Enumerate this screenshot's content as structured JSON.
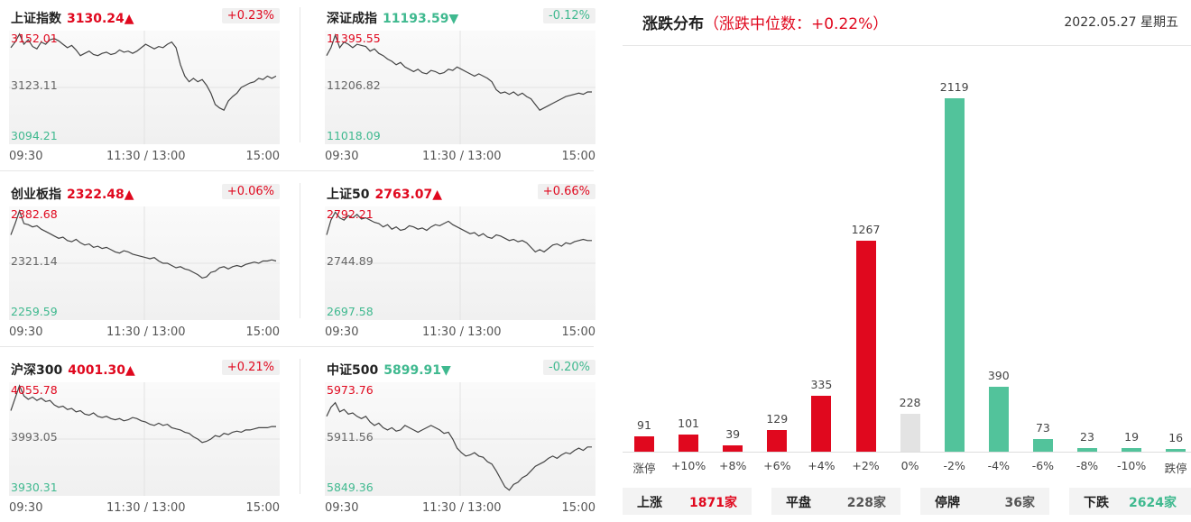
{
  "indices": [
    {
      "name": "上证指数",
      "price": "3130.24",
      "arrow": "▲",
      "dir": "up",
      "change": "+0.23%",
      "y_high": "3152.01",
      "y_mid": "3123.11",
      "y_low": "3094.21",
      "x_start": "09:30",
      "x_mid": "11:30 / 13:00",
      "x_end": "15:00",
      "series": [
        0.85,
        0.9,
        0.97,
        0.88,
        0.92,
        0.86,
        0.84,
        0.9,
        0.88,
        0.92,
        0.93,
        0.91,
        0.88,
        0.85,
        0.87,
        0.83,
        0.78,
        0.8,
        0.82,
        0.79,
        0.78,
        0.8,
        0.81,
        0.79,
        0.8,
        0.83,
        0.81,
        0.82,
        0.8,
        0.82,
        0.85,
        0.88,
        0.86,
        0.84,
        0.86,
        0.85,
        0.88,
        0.9,
        0.85,
        0.7,
        0.6,
        0.55,
        0.58,
        0.55,
        0.57,
        0.52,
        0.45,
        0.35,
        0.32,
        0.3,
        0.38,
        0.42,
        0.45,
        0.5,
        0.52,
        0.54,
        0.55,
        0.58,
        0.57,
        0.6,
        0.58,
        0.6
      ]
    },
    {
      "name": "深证成指",
      "price": "11193.59",
      "arrow": "▼",
      "dir": "down",
      "change": "-0.12%",
      "y_high": "11395.55",
      "y_mid": "11206.82",
      "y_low": "11018.09",
      "x_start": "09:30",
      "x_mid": "11:30 / 13:00",
      "x_end": "15:00",
      "series": [
        0.78,
        0.85,
        0.96,
        0.85,
        0.9,
        0.88,
        0.85,
        0.88,
        0.87,
        0.86,
        0.82,
        0.84,
        0.8,
        0.78,
        0.75,
        0.73,
        0.7,
        0.72,
        0.68,
        0.66,
        0.64,
        0.66,
        0.63,
        0.62,
        0.65,
        0.64,
        0.62,
        0.63,
        0.66,
        0.65,
        0.68,
        0.66,
        0.64,
        0.62,
        0.6,
        0.62,
        0.6,
        0.58,
        0.55,
        0.48,
        0.45,
        0.46,
        0.44,
        0.46,
        0.43,
        0.45,
        0.42,
        0.4,
        0.35,
        0.3,
        0.32,
        0.34,
        0.36,
        0.38,
        0.4,
        0.42,
        0.43,
        0.44,
        0.45,
        0.44,
        0.46,
        0.46
      ]
    },
    {
      "name": "创业板指",
      "price": "2322.48",
      "arrow": "▲",
      "dir": "up",
      "change": "+0.06%",
      "y_high": "2382.68",
      "y_mid": "2321.14",
      "y_low": "2259.59",
      "x_start": "09:30",
      "x_mid": "11:30 / 13:00",
      "x_end": "15:00",
      "series": [
        0.75,
        0.85,
        0.96,
        0.85,
        0.84,
        0.82,
        0.83,
        0.8,
        0.78,
        0.76,
        0.74,
        0.72,
        0.73,
        0.7,
        0.69,
        0.71,
        0.68,
        0.66,
        0.67,
        0.64,
        0.65,
        0.63,
        0.64,
        0.62,
        0.6,
        0.59,
        0.61,
        0.6,
        0.58,
        0.57,
        0.56,
        0.55,
        0.54,
        0.55,
        0.52,
        0.5,
        0.5,
        0.48,
        0.46,
        0.47,
        0.45,
        0.44,
        0.42,
        0.4,
        0.37,
        0.38,
        0.42,
        0.43,
        0.46,
        0.47,
        0.45,
        0.47,
        0.48,
        0.47,
        0.49,
        0.5,
        0.51,
        0.5,
        0.52,
        0.52,
        0.53,
        0.52
      ]
    },
    {
      "name": "上证50",
      "price": "2763.07",
      "arrow": "▲",
      "dir": "up",
      "change": "+0.66%",
      "y_high": "2792.21",
      "y_mid": "2744.89",
      "y_low": "2697.58",
      "x_start": "09:30",
      "x_mid": "11:30 / 13:00",
      "x_end": "15:00",
      "series": [
        0.75,
        0.88,
        0.95,
        0.9,
        0.88,
        0.92,
        0.9,
        0.93,
        0.89,
        0.9,
        0.88,
        0.86,
        0.85,
        0.82,
        0.84,
        0.8,
        0.82,
        0.79,
        0.8,
        0.83,
        0.82,
        0.8,
        0.81,
        0.79,
        0.82,
        0.84,
        0.83,
        0.85,
        0.87,
        0.84,
        0.82,
        0.8,
        0.78,
        0.76,
        0.77,
        0.74,
        0.76,
        0.73,
        0.72,
        0.75,
        0.74,
        0.72,
        0.7,
        0.71,
        0.69,
        0.7,
        0.68,
        0.64,
        0.6,
        0.62,
        0.6,
        0.63,
        0.66,
        0.67,
        0.65,
        0.68,
        0.67,
        0.69,
        0.7,
        0.71,
        0.7,
        0.7
      ]
    },
    {
      "name": "沪深300",
      "price": "4001.30",
      "arrow": "▲",
      "dir": "up",
      "change": "+0.21%",
      "y_high": "4055.78",
      "y_mid": "3993.05",
      "y_low": "3930.31",
      "x_start": "09:30",
      "x_mid": "11:30 / 13:00",
      "x_end": "15:00",
      "series": [
        0.75,
        0.86,
        0.97,
        0.88,
        0.85,
        0.87,
        0.84,
        0.86,
        0.83,
        0.84,
        0.8,
        0.78,
        0.79,
        0.76,
        0.77,
        0.74,
        0.75,
        0.72,
        0.71,
        0.73,
        0.7,
        0.69,
        0.7,
        0.68,
        0.67,
        0.68,
        0.66,
        0.67,
        0.69,
        0.68,
        0.66,
        0.65,
        0.63,
        0.62,
        0.64,
        0.62,
        0.63,
        0.6,
        0.59,
        0.58,
        0.56,
        0.55,
        0.52,
        0.5,
        0.47,
        0.48,
        0.5,
        0.53,
        0.52,
        0.55,
        0.54,
        0.56,
        0.57,
        0.56,
        0.58,
        0.58,
        0.59,
        0.6,
        0.6,
        0.6,
        0.61,
        0.61
      ]
    },
    {
      "name": "中证500",
      "price": "5899.91",
      "arrow": "▼",
      "dir": "down",
      "change": "-0.20%",
      "y_high": "5973.76",
      "y_mid": "5911.56",
      "y_low": "5849.36",
      "x_start": "09:30",
      "x_mid": "11:30 / 13:00",
      "x_end": "15:00",
      "series": [
        0.7,
        0.78,
        0.82,
        0.74,
        0.76,
        0.72,
        0.73,
        0.7,
        0.68,
        0.7,
        0.65,
        0.62,
        0.64,
        0.6,
        0.58,
        0.6,
        0.57,
        0.58,
        0.62,
        0.6,
        0.58,
        0.56,
        0.58,
        0.6,
        0.62,
        0.6,
        0.58,
        0.55,
        0.56,
        0.5,
        0.42,
        0.38,
        0.35,
        0.36,
        0.38,
        0.35,
        0.34,
        0.3,
        0.28,
        0.22,
        0.15,
        0.08,
        0.05,
        0.1,
        0.12,
        0.16,
        0.18,
        0.22,
        0.26,
        0.28,
        0.3,
        0.33,
        0.35,
        0.33,
        0.36,
        0.38,
        0.37,
        0.4,
        0.42,
        0.4,
        0.43,
        0.43
      ]
    }
  ],
  "distribution": {
    "title": "涨跌分布",
    "median_label": "（涨跌中位数：+0.22%）",
    "date": "2022.05.27 星期五",
    "chart_data": {
      "type": "bar",
      "categories": [
        "涨停",
        "+10%",
        "+8%",
        "+6%",
        "+4%",
        "+2%",
        "0%",
        "-2%",
        "-4%",
        "-6%",
        "-8%",
        "-10%",
        "跌停"
      ],
      "values": [
        91,
        101,
        39,
        129,
        335,
        1267,
        228,
        2119,
        390,
        73,
        23,
        19,
        16
      ],
      "colors": [
        "#e0081e",
        "#e0081e",
        "#e0081e",
        "#e0081e",
        "#e0081e",
        "#e0081e",
        "#e3e3e3",
        "#52c39b",
        "#52c39b",
        "#52c39b",
        "#52c39b",
        "#52c39b",
        "#52c39b"
      ],
      "ylim": [
        0,
        2119
      ]
    },
    "summary": [
      {
        "label": "上涨",
        "value": "1871家",
        "color": "#e0081e"
      },
      {
        "label": "平盘",
        "value": "228家",
        "color": "#555555"
      },
      {
        "label": "停牌",
        "value": "36家",
        "color": "#555555"
      },
      {
        "label": "下跌",
        "value": "2624家",
        "color": "#3fb98f"
      }
    ]
  }
}
